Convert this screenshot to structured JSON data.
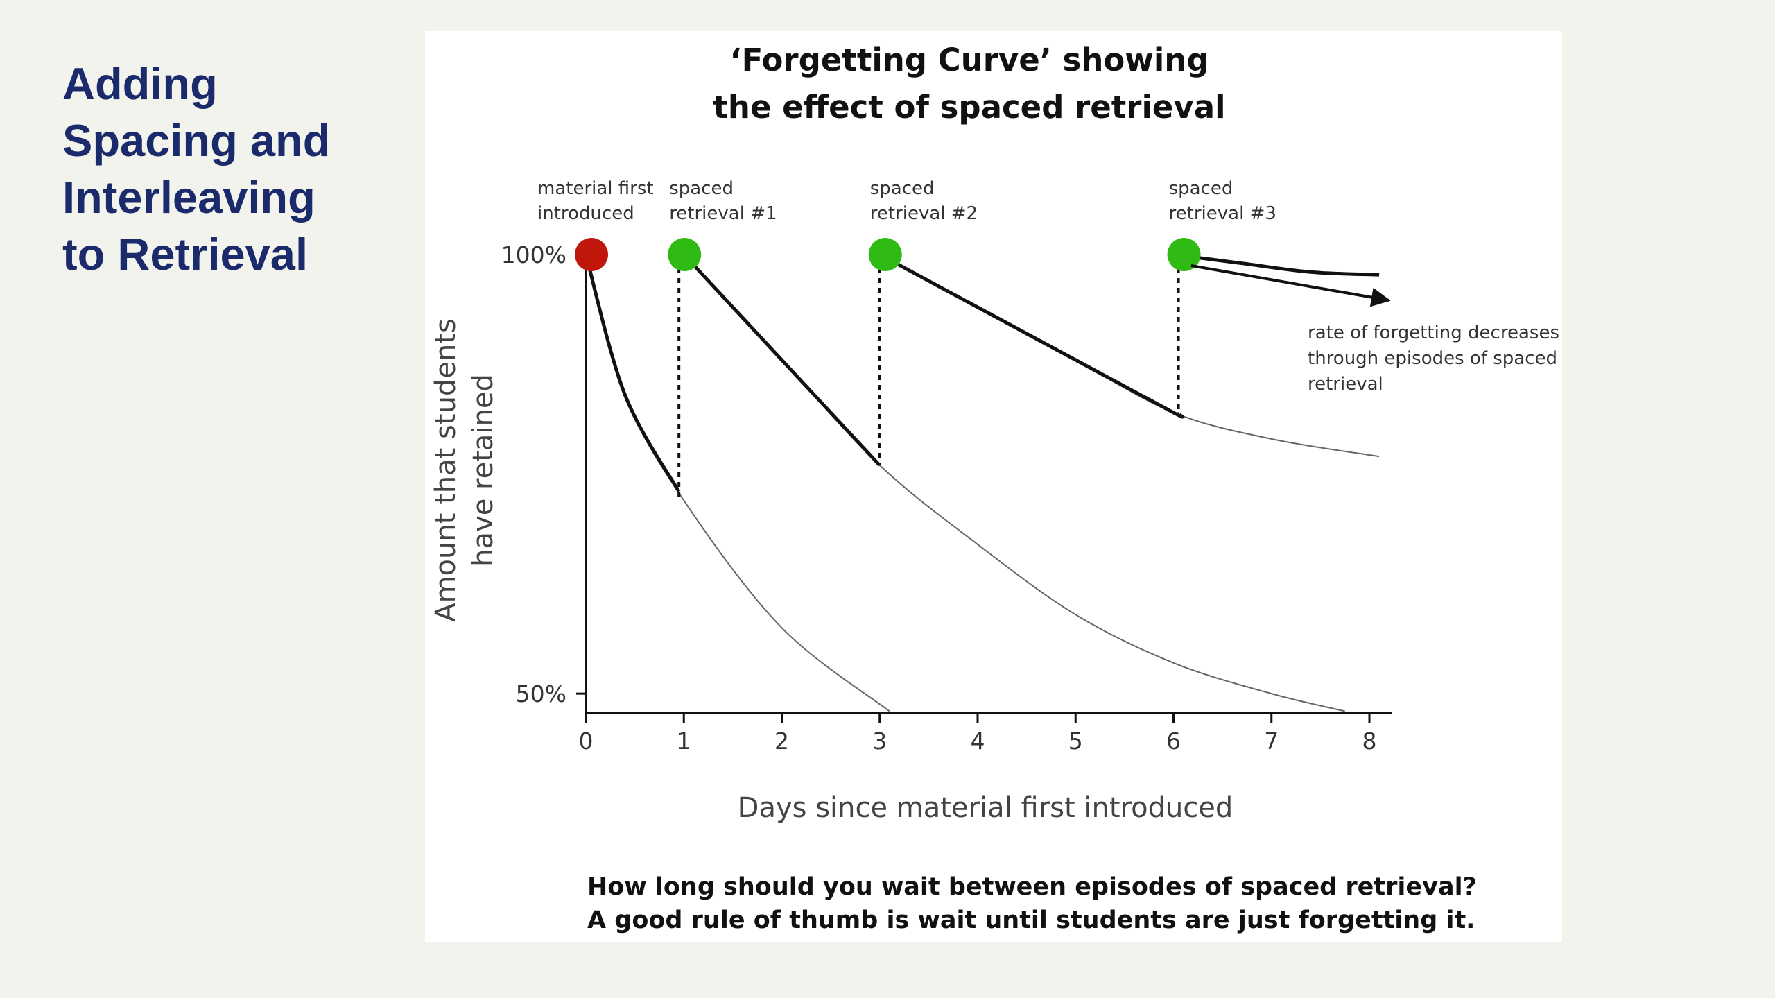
{
  "slide": {
    "title_lines": [
      "Adding",
      "Spacing and",
      "Interleaving",
      "to Retrieval"
    ]
  },
  "chart_data": {
    "type": "line",
    "title": [
      "‘Forgetting Curve’ showing",
      "the effect of spaced retrieval"
    ],
    "xlabel": "Days since material first introduced",
    "ylabel": [
      "Amount that students",
      "have retained"
    ],
    "x_ticks": [
      "0",
      "1",
      "2",
      "3",
      "4",
      "5",
      "6",
      "7",
      "8"
    ],
    "x_tick_values": [
      0,
      1,
      2,
      3,
      4,
      5,
      6,
      7,
      8
    ],
    "y_ticks": [
      {
        "label": "100%",
        "value": 100
      },
      {
        "label": "50%",
        "value": 50
      }
    ],
    "xlim": [
      0,
      8.2
    ],
    "ylim": [
      47.8,
      100
    ],
    "series": [
      {
        "role": "decay",
        "points": [
          [
            0,
            100
          ],
          [
            0.4,
            84
          ],
          [
            1,
            72
          ],
          [
            2,
            57.5
          ],
          [
            3.1,
            48
          ]
        ]
      },
      {
        "role": "decay",
        "points": [
          [
            1,
            100
          ],
          [
            2,
            88
          ],
          [
            3,
            76
          ],
          [
            4,
            67
          ],
          [
            5,
            59
          ],
          [
            6,
            53.5
          ],
          [
            7,
            50
          ],
          [
            7.75,
            48
          ]
        ]
      },
      {
        "role": "decay",
        "points": [
          [
            3,
            100
          ],
          [
            4,
            94
          ],
          [
            5,
            88
          ],
          [
            6,
            82
          ],
          [
            7,
            79
          ],
          [
            8.1,
            77
          ]
        ]
      },
      {
        "role": "decay-end",
        "points": [
          [
            6,
            100
          ],
          [
            6.7,
            99
          ],
          [
            7.4,
            98
          ],
          [
            8.1,
            97.7
          ]
        ]
      }
    ],
    "retrieval_events": [
      {
        "x": 0,
        "label_lines": [
          "material first",
          "introduced"
        ],
        "color": "#c0160b",
        "drop_to": null
      },
      {
        "x": 0.95,
        "label_lines": [
          "spaced",
          "retrieval #1"
        ],
        "color": "#2fbb14",
        "drop_to": 72
      },
      {
        "x": 3,
        "label_lines": [
          "spaced",
          "retrieval #2"
        ],
        "color": "#2fbb14",
        "drop_to": 76
      },
      {
        "x": 6.05,
        "label_lines": [
          "spaced",
          "retrieval #3"
        ],
        "color": "#2fbb14",
        "drop_to": 82
      }
    ],
    "annotation": [
      "rate of forgetting decreases",
      "through episodes of spaced",
      "retrieval"
    ],
    "footnote": [
      "How long should you wait between episodes of spaced retrieval?",
      "A good rule of thumb is wait until students are just forgetting it."
    ]
  }
}
